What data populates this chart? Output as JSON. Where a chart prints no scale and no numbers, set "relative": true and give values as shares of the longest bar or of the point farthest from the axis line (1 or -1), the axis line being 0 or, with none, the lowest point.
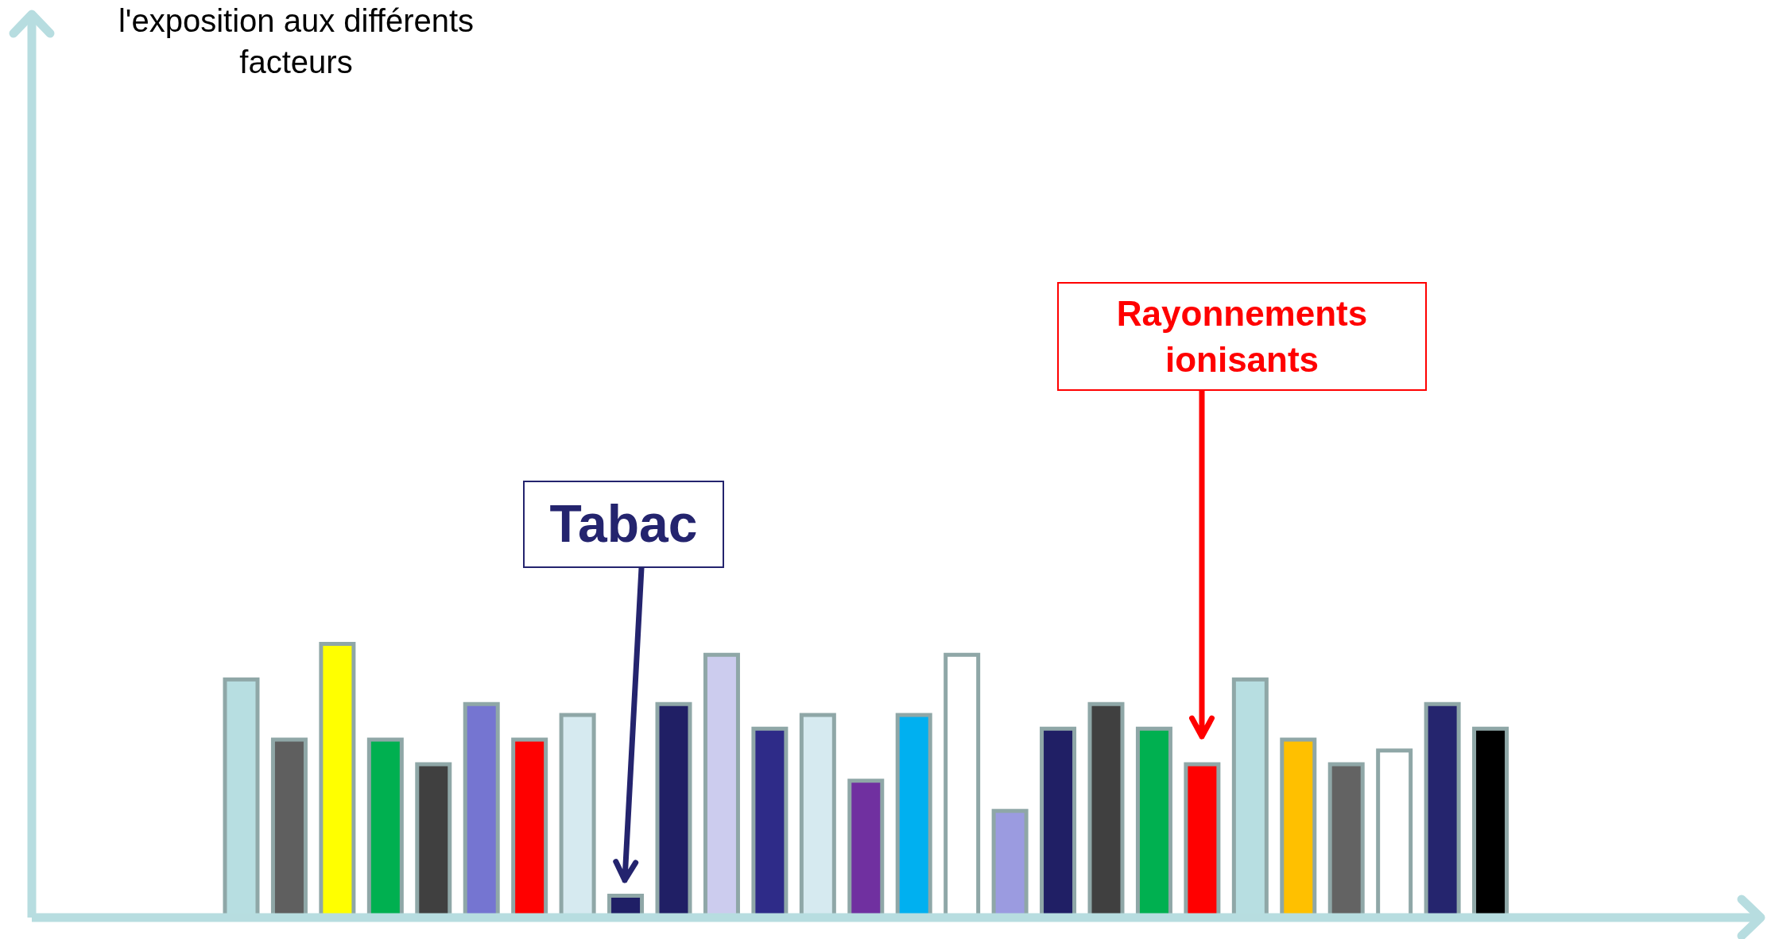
{
  "chart_data": {
    "type": "bar",
    "relative": true,
    "categories": [
      null,
      null,
      null,
      null,
      null,
      null,
      null,
      null,
      null,
      null,
      null,
      null,
      null,
      null,
      null,
      null,
      null,
      null,
      null,
      null,
      null,
      null,
      null,
      null,
      null,
      null,
      null
    ],
    "values": [
      0.87,
      0.65,
      1,
      0.65,
      0.56,
      0.78,
      0.65,
      0.74,
      0.08,
      0.78,
      0.96,
      0.69,
      0.74,
      0.5,
      0.74,
      0.96,
      0.39,
      0.69,
      0.78,
      0.69,
      0.56,
      0.87,
      0.65,
      0.56,
      0.61,
      0.78,
      0.69
    ],
    "colors": [
      "#b7dee1",
      "#5f5f5f",
      "#ffff00",
      "#00b050",
      "#404040",
      "#7575d1",
      "#ff0000",
      "#d6eaf0",
      "#1f1f66",
      "#201f65",
      "#ccccee",
      "#2e2b88",
      "#d6eaf0",
      "#7030a0",
      "#00b0f0",
      "#ffffff",
      "#9b9be0",
      "#201f65",
      "#404040",
      "#00b050",
      "#ff0000",
      "#b7dee1",
      "#ffc000",
      "#636363",
      "#ffffff",
      "#25256e",
      "#000000"
    ],
    "annotations": [
      "l'exposition aux différents facteurs",
      "Tabac",
      "Rayonnements ionisants"
    ],
    "grid": false,
    "legend": false
  }
}
